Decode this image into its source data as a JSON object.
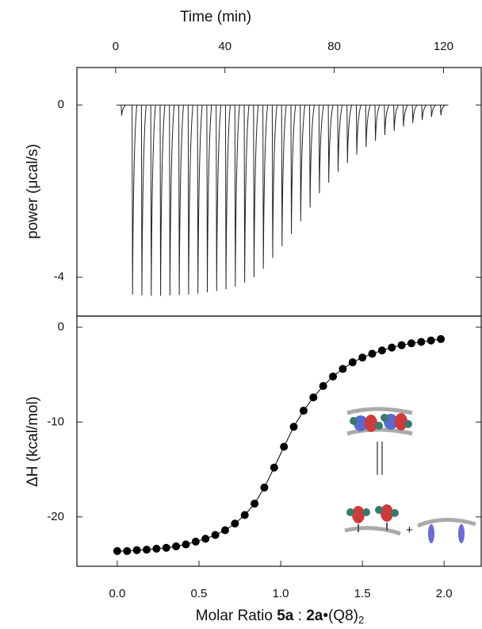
{
  "chart_data": [
    {
      "type": "peaks",
      "x_label": "Time (min)",
      "y_label": "power (μcal/s)",
      "x": [
        2,
        6,
        9.42,
        12.84,
        16.26,
        19.68,
        23.1,
        26.52,
        29.94,
        33.36,
        36.78,
        40.2,
        43.62,
        47.04,
        50.46,
        53.88,
        57.3,
        60.72,
        64.14,
        67.56,
        70.98,
        74.4,
        77.82,
        81.24,
        84.66,
        88.08,
        91.5,
        94.92,
        98.34,
        101.76,
        105.18,
        108.6,
        112.02,
        115.44,
        118.86
      ],
      "values": [
        -0.25,
        -4.4,
        -4.42,
        -4.43,
        -4.43,
        -4.42,
        -4.41,
        -4.4,
        -4.38,
        -4.35,
        -4.32,
        -4.28,
        -4.22,
        -4.12,
        -4.0,
        -3.8,
        -3.55,
        -3.28,
        -3.0,
        -2.7,
        -2.38,
        -2.05,
        -1.8,
        -1.55,
        -1.35,
        -1.15,
        -0.98,
        -0.83,
        -0.7,
        -0.6,
        -0.5,
        -0.42,
        -0.35,
        -0.28,
        -0.24
      ],
      "color": "#222222",
      "xlim": [
        -14.2,
        133.8
      ],
      "xticks": [
        0,
        40,
        80,
        120
      ],
      "ylim": [
        -4.9,
        0.87
      ],
      "yticks": [
        -4,
        0
      ]
    },
    {
      "type": "scatter",
      "x_label": [
        "Molar Ratio ",
        "5a",
        " : ",
        "2a",
        "•(Q8)",
        "2"
      ],
      "y_label": "ΔH (kcal/mol)",
      "x": [
        0,
        0.06,
        0.12,
        0.18,
        0.24,
        0.3,
        0.36,
        0.42,
        0.48,
        0.54,
        0.6,
        0.66,
        0.72,
        0.78,
        0.84,
        0.9,
        0.96,
        1.02,
        1.08,
        1.14,
        1.2,
        1.26,
        1.32,
        1.38,
        1.44,
        1.5,
        1.56,
        1.62,
        1.68,
        1.74,
        1.8,
        1.86,
        1.92,
        1.98
      ],
      "values": [
        -23.6,
        -23.6,
        -23.5,
        -23.45,
        -23.35,
        -23.25,
        -23.1,
        -22.9,
        -22.6,
        -22.3,
        -21.9,
        -21.4,
        -20.7,
        -19.8,
        -18.6,
        -16.9,
        -14.8,
        -12.6,
        -10.5,
        -8.8,
        -7.4,
        -6.2,
        -5.2,
        -4.4,
        -3.7,
        -3.2,
        -2.8,
        -2.45,
        -2.15,
        -1.9,
        -1.7,
        -1.55,
        -1.4,
        -1.25
      ],
      "color": "#000000",
      "xlim": [
        -0.247,
        2.227
      ],
      "xticks": [
        {
          "value": 0,
          "label": "0.0"
        },
        0.5,
        {
          "value": 1,
          "label": "1.0"
        },
        1.5,
        {
          "value": 2,
          "label": "2.0"
        }
      ],
      "ylim": [
        -25.2,
        1.17
      ],
      "yticks": [
        -20,
        -10,
        0
      ]
    }
  ]
}
